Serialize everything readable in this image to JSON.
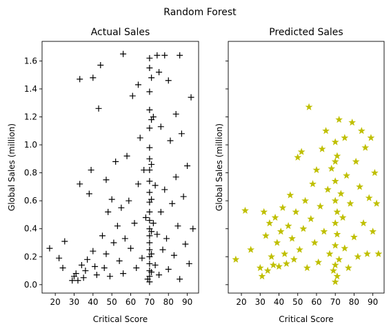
{
  "figure": {
    "suptitle": "Random Forest"
  },
  "chart_data": [
    {
      "type": "scatter",
      "title": "Actual Sales",
      "xlabel": "Critical Score",
      "ylabel": "Global Sales (million)",
      "xlim": [
        13,
        96
      ],
      "ylim": [
        -0.06,
        1.74
      ],
      "xticks": [
        "20",
        "30",
        "40",
        "50",
        "60",
        "70",
        "80",
        "90"
      ],
      "yticks": [
        "0.0",
        "0.2",
        "0.4",
        "0.6",
        "0.8",
        "1.0",
        "1.2",
        "1.4",
        "1.6"
      ],
      "marker": "+",
      "color": "#000000",
      "series": [
        {
          "points": [
            [
              17,
              0.26
            ],
            [
              22,
              0.19
            ],
            [
              25,
              0.31
            ],
            [
              24,
              0.12
            ],
            [
              29,
              0.03
            ],
            [
              30,
              0.06
            ],
            [
              31,
              0.08
            ],
            [
              32,
              0.03
            ],
            [
              33,
              0.72
            ],
            [
              33,
              1.47
            ],
            [
              34,
              0.14
            ],
            [
              35,
              0.05
            ],
            [
              36,
              0.1
            ],
            [
              37,
              0.18
            ],
            [
              38,
              0.65
            ],
            [
              39,
              0.82
            ],
            [
              40,
              1.48
            ],
            [
              40,
              0.24
            ],
            [
              41,
              0.13
            ],
            [
              42,
              0.07
            ],
            [
              43,
              1.26
            ],
            [
              44,
              1.57
            ],
            [
              45,
              0.35
            ],
            [
              46,
              0.12
            ],
            [
              47,
              0.75
            ],
            [
              47,
              0.22
            ],
            [
              48,
              0.52
            ],
            [
              49,
              0.06
            ],
            [
              50,
              0.61
            ],
            [
              51,
              0.3
            ],
            [
              52,
              0.88
            ],
            [
              53,
              0.42
            ],
            [
              54,
              0.17
            ],
            [
              55,
              0.55
            ],
            [
              56,
              1.65
            ],
            [
              56,
              0.08
            ],
            [
              57,
              0.33
            ],
            [
              58,
              0.92
            ],
            [
              59,
              0.6
            ],
            [
              60,
              0.26
            ],
            [
              61,
              1.35
            ],
            [
              62,
              0.44
            ],
            [
              63,
              0.12
            ],
            [
              64,
              1.43
            ],
            [
              64,
              0.72
            ],
            [
              65,
              1.05
            ],
            [
              66,
              0.19
            ],
            [
              67,
              0.82
            ],
            [
              68,
              0.48
            ],
            [
              69,
              0.04
            ],
            [
              70,
              1.62
            ],
            [
              70,
              1.55
            ],
            [
              70,
              1.38
            ],
            [
              70,
              1.25
            ],
            [
              70,
              1.12
            ],
            [
              70,
              0.98
            ],
            [
              70,
              0.9
            ],
            [
              70,
              0.82
            ],
            [
              70,
              0.74
            ],
            [
              70,
              0.66
            ],
            [
              70,
              0.59
            ],
            [
              70,
              0.52
            ],
            [
              70,
              0.46
            ],
            [
              70,
              0.4
            ],
            [
              70,
              0.35
            ],
            [
              70,
              0.3
            ],
            [
              70,
              0.25
            ],
            [
              70,
              0.2
            ],
            [
              70,
              0.15
            ],
            [
              70,
              0.1
            ],
            [
              70,
              0.06
            ],
            [
              70,
              0.02
            ],
            [
              71,
              1.48
            ],
            [
              71,
              1.18
            ],
            [
              71,
              0.86
            ],
            [
              71,
              0.61
            ],
            [
              71,
              0.38
            ],
            [
              71,
              0.22
            ],
            [
              71,
              0.09
            ],
            [
              72,
              1.2
            ],
            [
              72,
              0.44
            ],
            [
              73,
              0.71
            ],
            [
              73,
              0.14
            ],
            [
              74,
              1.64
            ],
            [
              74,
              0.36
            ],
            [
              75,
              1.52
            ],
            [
              75,
              0.07
            ],
            [
              76,
              1.13
            ],
            [
              76,
              0.52
            ],
            [
              77,
              0.25
            ],
            [
              78,
              1.64
            ],
            [
              78,
              0.68
            ],
            [
              79,
              0.33
            ],
            [
              80,
              1.46
            ],
            [
              80,
              0.11
            ],
            [
              81,
              1.03
            ],
            [
              82,
              0.58
            ],
            [
              83,
              0.21
            ],
            [
              84,
              1.22
            ],
            [
              84,
              0.77
            ],
            [
              85,
              0.42
            ],
            [
              86,
              1.64
            ],
            [
              86,
              0.04
            ],
            [
              87,
              1.08
            ],
            [
              88,
              0.63
            ],
            [
              89,
              0.29
            ],
            [
              90,
              0.85
            ],
            [
              91,
              0.15
            ],
            [
              92,
              1.34
            ],
            [
              93,
              0.4
            ]
          ]
        }
      ]
    },
    {
      "type": "scatter",
      "title": "Predicted Sales",
      "xlabel": "Critical Score",
      "ylabel": "Global Sales (million)",
      "xlim": [
        13,
        96
      ],
      "ylim": [
        -0.06,
        1.74
      ],
      "xticks": [
        "20",
        "30",
        "40",
        "50",
        "60",
        "70",
        "80",
        "90"
      ],
      "yticks": [],
      "marker": "*",
      "color": "#bfbf00",
      "series": [
        {
          "points": [
            [
              17,
              0.18
            ],
            [
              22,
              0.53
            ],
            [
              25,
              0.25
            ],
            [
              30,
              0.12
            ],
            [
              31,
              0.06
            ],
            [
              32,
              0.52
            ],
            [
              33,
              0.35
            ],
            [
              34,
              0.1
            ],
            [
              35,
              0.44
            ],
            [
              36,
              0.2
            ],
            [
              37,
              0.14
            ],
            [
              38,
              0.48
            ],
            [
              39,
              0.3
            ],
            [
              40,
              0.13
            ],
            [
              41,
              0.38
            ],
            [
              42,
              0.55
            ],
            [
              43,
              0.22
            ],
            [
              44,
              0.15
            ],
            [
              45,
              0.42
            ],
            [
              46,
              0.64
            ],
            [
              47,
              0.33
            ],
            [
              48,
              0.18
            ],
            [
              49,
              0.52
            ],
            [
              50,
              0.91
            ],
            [
              51,
              0.25
            ],
            [
              52,
              0.95
            ],
            [
              53,
              0.4
            ],
            [
              54,
              0.6
            ],
            [
              55,
              0.12
            ],
            [
              56,
              1.27
            ],
            [
              57,
              0.47
            ],
            [
              58,
              0.72
            ],
            [
              59,
              0.3
            ],
            [
              60,
              0.82
            ],
            [
              61,
              0.16
            ],
            [
              62,
              0.56
            ],
            [
              63,
              0.97
            ],
            [
              64,
              0.38
            ],
            [
              65,
              1.1
            ],
            [
              66,
              0.68
            ],
            [
              67,
              0.22
            ],
            [
              68,
              0.83
            ],
            [
              69,
              0.1
            ],
            [
              70,
              0.02
            ],
            [
              70,
              0.14
            ],
            [
              70,
              0.28
            ],
            [
              70,
              0.44
            ],
            [
              70,
              0.6
            ],
            [
              70,
              0.74
            ],
            [
              70,
              0.88
            ],
            [
              70,
              1.02
            ],
            [
              71,
              0.06
            ],
            [
              71,
              0.36
            ],
            [
              71,
              0.52
            ],
            [
              71,
              0.92
            ],
            [
              72,
              1.18
            ],
            [
              72,
              0.18
            ],
            [
              73,
              0.65
            ],
            [
              74,
              0.48
            ],
            [
              75,
              1.05
            ],
            [
              75,
              0.26
            ],
            [
              76,
              0.78
            ],
            [
              77,
              0.12
            ],
            [
              78,
              0.58
            ],
            [
              79,
              1.16
            ],
            [
              80,
              0.34
            ],
            [
              81,
              0.88
            ],
            [
              82,
              0.2
            ],
            [
              83,
              0.7
            ],
            [
              84,
              1.1
            ],
            [
              85,
              0.44
            ],
            [
              86,
              0.98
            ],
            [
              87,
              0.22
            ],
            [
              88,
              0.62
            ],
            [
              89,
              1.05
            ],
            [
              90,
              0.38
            ],
            [
              91,
              0.8
            ],
            [
              92,
              0.58
            ],
            [
              93,
              0.22
            ]
          ]
        }
      ]
    }
  ]
}
